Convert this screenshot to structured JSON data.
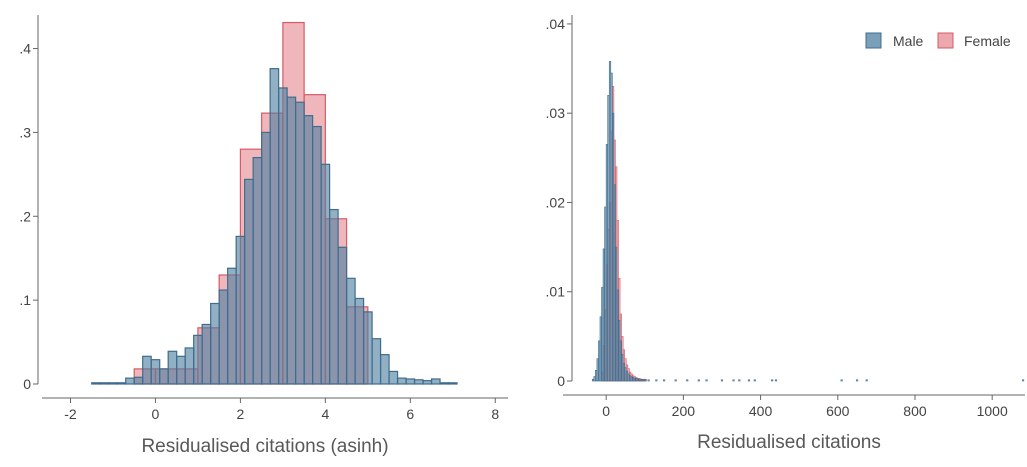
{
  "colors": {
    "male_fill": "#4e7fa0",
    "male_edge": "#3f6c8e",
    "female_fill": "#e27a84",
    "female_edge": "#d65b67",
    "axis": "#666666"
  },
  "chart_data": [
    {
      "type": "bar",
      "subtype": "overlaid-histogram",
      "title": "",
      "xlabel": "Residualised citations (asinh)",
      "ylabel": "",
      "xlim": [
        -2.2,
        8.3
      ],
      "ylim": [
        0,
        0.44
      ],
      "x_ticks": [
        -2,
        0,
        2,
        4,
        6,
        8
      ],
      "x_tick_labels": [
        "-2",
        "0",
        "2",
        "4",
        "6",
        "8"
      ],
      "y_ticks": [
        0,
        0.1,
        0.2,
        0.3,
        0.4
      ],
      "y_tick_labels": [
        "0",
        ".1",
        ".2",
        ".3",
        ".4"
      ],
      "grid": false,
      "legend": "none",
      "series": [
        {
          "name": "Male",
          "bin_width": 0.2,
          "x": [
            -1.4,
            -1.2,
            -1.0,
            -0.8,
            -0.6,
            -0.4,
            -0.2,
            0.0,
            0.2,
            0.4,
            0.6,
            0.8,
            1.0,
            1.2,
            1.4,
            1.6,
            1.8,
            2.0,
            2.2,
            2.4,
            2.6,
            2.8,
            3.0,
            3.2,
            3.4,
            3.6,
            3.8,
            4.0,
            4.2,
            4.4,
            4.6,
            4.8,
            5.0,
            5.2,
            5.4,
            5.6,
            5.8,
            6.0,
            6.2,
            6.4,
            6.6,
            6.8,
            7.0
          ],
          "values": [
            0.001,
            0.0,
            0.001,
            0.0,
            0.007,
            0.008,
            0.033,
            0.029,
            0.018,
            0.039,
            0.033,
            0.043,
            0.058,
            0.071,
            0.096,
            0.112,
            0.138,
            0.176,
            0.244,
            0.27,
            0.3,
            0.376,
            0.353,
            0.342,
            0.336,
            0.32,
            0.307,
            0.262,
            0.208,
            0.163,
            0.126,
            0.102,
            0.086,
            0.054,
            0.035,
            0.015,
            0.007,
            0.006,
            0.005,
            0.004,
            0.006,
            0.0,
            0.001
          ]
        },
        {
          "name": "Female",
          "bin_width": 0.5,
          "x": [
            -0.25,
            0.25,
            0.75,
            1.25,
            1.75,
            2.25,
            2.75,
            3.25,
            3.75,
            4.25,
            4.75
          ],
          "values": [
            0.018,
            0.018,
            0.018,
            0.067,
            0.13,
            0.28,
            0.323,
            0.431,
            0.345,
            0.197,
            0.092
          ]
        }
      ]
    },
    {
      "type": "bar",
      "subtype": "overlaid-histogram",
      "title": "",
      "xlabel": "Residualised citations",
      "ylabel": "",
      "xlim": [
        -60,
        1085
      ],
      "ylim": [
        0,
        0.041
      ],
      "x_ticks": [
        0,
        200,
        400,
        600,
        800,
        1000
      ],
      "x_tick_labels": [
        "0",
        "200",
        "400",
        "600",
        "800",
        "1000"
      ],
      "y_ticks": [
        0,
        0.01,
        0.02,
        0.03,
        0.04
      ],
      "y_tick_labels": [
        "0",
        ".01",
        ".02",
        ".03",
        ".04"
      ],
      "grid": false,
      "legend": "top-right",
      "series": [
        {
          "name": "Male",
          "bin_width": 4,
          "x": [
            -34,
            -30,
            -26,
            -22,
            -18,
            -14,
            -10,
            -6,
            -2,
            2,
            6,
            10,
            14,
            18,
            22,
            26,
            30,
            34,
            38,
            42,
            46,
            50,
            54,
            58,
            62,
            66,
            70,
            74,
            78,
            82,
            86,
            90,
            94,
            98,
            102,
            110,
            130,
            150,
            180,
            210,
            240,
            260,
            300,
            330,
            345,
            370,
            385,
            430,
            440,
            610,
            650,
            675,
            1080
          ],
          "values": [
            0.0002,
            0.0005,
            0.0012,
            0.0025,
            0.0045,
            0.0072,
            0.0105,
            0.0148,
            0.0195,
            0.0265,
            0.032,
            0.0358,
            0.0345,
            0.03,
            0.022,
            0.015,
            0.0102,
            0.0068,
            0.0045,
            0.003,
            0.002,
            0.0015,
            0.0011,
            0.0008,
            0.0006,
            0.0005,
            0.0004,
            0.0003,
            0.0003,
            0.0002,
            0.0002,
            0.0002,
            0.0001,
            0.0001,
            0.0001,
            0.0001,
            0.0001,
            0.0001,
            0.0001,
            0.0001,
            0.0001,
            0.0001,
            0.0001,
            0.0001,
            0.0001,
            0.0001,
            0.0001,
            0.0001,
            0.0001,
            0.0001,
            0.0001,
            0.0001,
            0.0001
          ]
        },
        {
          "name": "Female",
          "bin_width": 4,
          "x": [
            -10,
            -6,
            -2,
            2,
            6,
            10,
            14,
            18,
            22,
            26,
            30,
            34,
            38,
            42,
            46,
            50,
            54,
            58,
            62,
            66,
            70,
            74,
            78,
            82,
            86,
            90,
            94,
            98,
            102
          ],
          "values": [
            0.001,
            0.004,
            0.008,
            0.013,
            0.017,
            0.02,
            0.028,
            0.033,
            0.027,
            0.024,
            0.018,
            0.0115,
            0.0075,
            0.005,
            0.0035,
            0.0025,
            0.0018,
            0.0014,
            0.001,
            0.0008,
            0.0006,
            0.0005,
            0.0004,
            0.0003,
            0.0003,
            0.0002,
            0.0002,
            0.0002,
            0.0002
          ]
        }
      ]
    }
  ]
}
